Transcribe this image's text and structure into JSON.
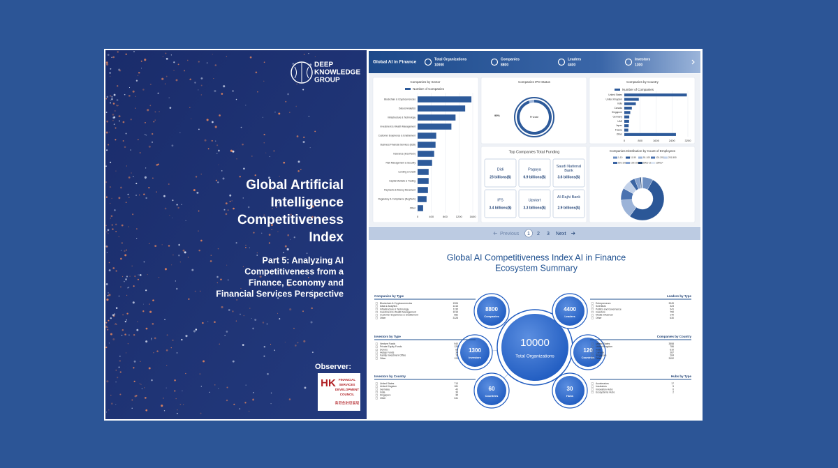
{
  "cover": {
    "logo_lines": [
      "DEEP",
      "KNOWLEDGE",
      "GROUP"
    ],
    "title_lines": [
      "Global Artificial",
      "Intelligence",
      "Competitiveness",
      "Index"
    ],
    "subtitle_lines": [
      "Part 5: Analyzing AI",
      "Competitiveness from a",
      "Finance, Economy and",
      "Financial Services Perspective"
    ],
    "observer": "Observer:",
    "observer_logo": {
      "mark": "HK",
      "lines": [
        "FINANCIAL",
        "SERVICES",
        "DEVELOPMENT",
        "COUNCIL"
      ],
      "chinese": "香港金融發展局"
    }
  },
  "dashboard": {
    "header": {
      "title": "Global AI in Finance",
      "stats": [
        {
          "label": "Total Organizations",
          "value": 10000
        },
        {
          "label": "Companies",
          "value": 8800
        },
        {
          "label": "Leaders",
          "value": 4400
        },
        {
          "label": "Investors",
          "value": 1300
        }
      ]
    },
    "sector_chart": {
      "title": "Companies by Sector",
      "legend": "Number of Companies",
      "color": "#2d5a9a",
      "categories": [
        "Blockchain & Cryptocurrencies",
        "Data & Analytics",
        "Infrastructure & Technology",
        "Investment & Wealth Management",
        "Customer Experience & Enablement",
        "Business Financial Services (B2B)",
        "Insurance (InsurTech)",
        "Risk Management & Security",
        "Lending & Credit",
        "Capital Markets & Trading",
        "Payments & Money Movement",
        "Regulatory & Compliance (RegTech)",
        "Other"
      ],
      "values": [
        1560,
        1380,
        1100,
        980,
        540,
        520,
        480,
        420,
        320,
        320,
        300,
        260,
        160
      ],
      "xlim": [
        0,
        1600
      ],
      "xticks": [
        0,
        400,
        800,
        1200,
        1600
      ]
    },
    "ipo_chart": {
      "title": "Companies IPO Status",
      "label": "Private",
      "value": 95,
      "value_label": "95%",
      "color": "#2d5a9a"
    },
    "country_chart": {
      "title": "Companies by Country",
      "legend": "Number of Companies",
      "color": "#2d5a9a",
      "categories": [
        "United States",
        "United Kingdom",
        "India",
        "Canada",
        "Singapore",
        "Germany",
        "UAE",
        "Japan",
        "France",
        "Other"
      ],
      "values": [
        3150,
        730,
        580,
        380,
        300,
        250,
        240,
        220,
        200,
        2600
      ],
      "xlim": [
        0,
        3200
      ],
      "xticks": [
        0,
        800,
        1600,
        2400,
        3200
      ]
    },
    "funding": {
      "title": "Top Companies Total Funding",
      "companies": [
        {
          "name": "Didi",
          "amount": "23 billions($)"
        },
        {
          "name": "Pagaya",
          "amount": "6.9 billions($)"
        },
        {
          "name": "Saudi National Bank",
          "amount": "3.6 billions($)"
        },
        {
          "name": "IFS",
          "amount": "3.4 billions($)"
        },
        {
          "name": "Upstart",
          "amount": "3.3 billions($)"
        },
        {
          "name": "Al-Rajhi Bank",
          "amount": "2.9 billions($)"
        }
      ]
    },
    "employees_chart": {
      "title": "Companies Distribution by Count of Employees",
      "categories": [
        "1-10",
        "11-50",
        "51-100",
        "101-200",
        "201-500",
        "501-1000",
        "1001-5000",
        "5001-10000",
        "10001+"
      ],
      "values": [
        8,
        52,
        14,
        9,
        7,
        4,
        4,
        1,
        1
      ],
      "colors": [
        "#6d8fc2",
        "#2b5797",
        "#9bb3d8",
        "#4a72b0",
        "#c2d1e9",
        "#3a64a3",
        "#85a2cf",
        "#1e4275",
        "#dde6f3"
      ]
    },
    "pagination": {
      "previous": "Previous",
      "pages": [
        1,
        2,
        3
      ],
      "next": "Next"
    }
  },
  "summary": {
    "title_lines": [
      "Global AI Competitiveness Index AI in Finance",
      "Ecosystem Summary"
    ],
    "center": {
      "value": 10000,
      "label": "Total Organizations"
    },
    "circles": [
      {
        "value": 8800,
        "label": "Companies"
      },
      {
        "value": 4400,
        "label": "Leaders"
      },
      {
        "value": 1300,
        "label": "Investors"
      },
      {
        "value": 120,
        "label": "Countries"
      },
      {
        "value": 60,
        "label": "Countries"
      },
      {
        "value": 30,
        "label": "Hubs"
      }
    ],
    "tables": [
      {
        "title": "Companies by Type",
        "rows": [
          [
            "Blockchain & Cryptocurrencies",
            1906
          ],
          [
            "Data & Analytics",
            1416
          ],
          [
            "Infrastructure & Technology",
            1135
          ],
          [
            "Investment & Wealth Management",
            1016
          ],
          [
            "Customer Experience & Enablement",
            582
          ],
          [
            "Other",
            3128
          ]
        ]
      },
      {
        "title": "Investors by Type",
        "rows": [
          [
            "Venture Funds",
            940
          ],
          [
            "Private Equity Funds",
            128
          ],
          [
            "Donors",
            65
          ],
          [
            "Hedge Funds",
            34
          ],
          [
            "Family Investment Office",
            19
          ],
          [
            "Other",
            124
          ]
        ]
      },
      {
        "title": "Investors by Country",
        "rows": [
          [
            "United States",
            713
          ],
          [
            "United Kingdom",
            181
          ],
          [
            "Germany",
            40
          ],
          [
            "India",
            36
          ],
          [
            "Singapore",
            35
          ],
          [
            "Other",
            341
          ]
        ]
      },
      {
        "title": "Leaders by Type",
        "rows": [
          [
            "Entrepreneurs",
            3049
          ],
          [
            "Scientists",
            323
          ],
          [
            "Politics and Governance",
            341
          ],
          [
            "Investors",
            750
          ],
          [
            "Media Influencer",
            140
          ],
          [
            "Other",
            630
          ]
        ]
      },
      {
        "title": "Companies by Country",
        "rows": [
          [
            "United States",
            3558
          ],
          [
            "United Kingdom",
            786
          ],
          [
            "India",
            610
          ],
          [
            "Canada",
            387
          ],
          [
            "Singapore",
            264
          ],
          [
            "Other",
            3152
          ]
        ]
      },
      {
        "title": "Hubs by Type",
        "rows": [
          [
            "Accelerators",
            17
          ],
          [
            "Incubators",
            5
          ],
          [
            "Innovation Hubs",
            6
          ],
          [
            "Ecosystems Hubs",
            2
          ]
        ]
      }
    ]
  }
}
